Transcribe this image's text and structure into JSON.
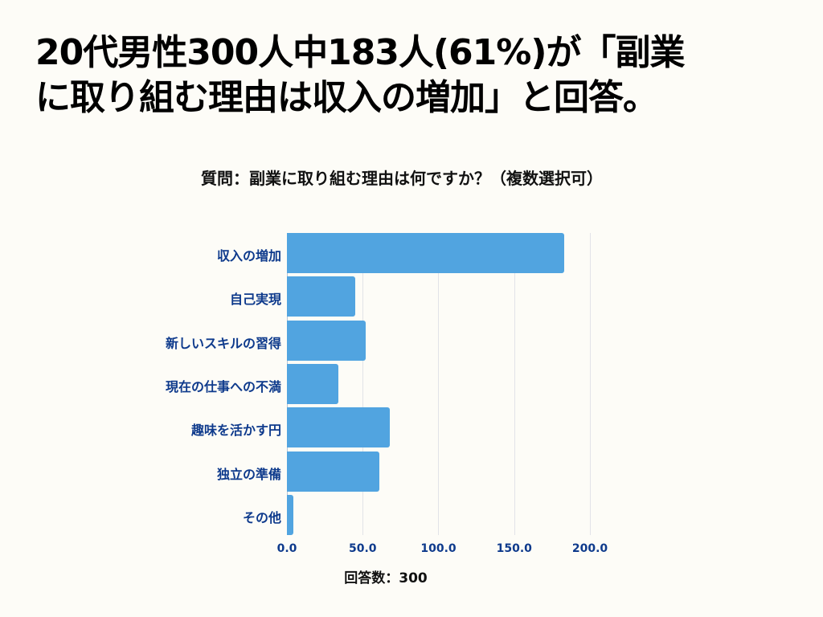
{
  "headline": {
    "line1": "20代男性300人中183人(61%)が「副業",
    "line2": "に取り組む理由は収入の増加」と回答。"
  },
  "chart_title": "質問：副業に取り組む理由は何ですか？（複数選択可）",
  "x_axis_label": "回答数：300",
  "colors": {
    "bar": "#51a4e0",
    "label": "#0e3a8c",
    "background": "#fdfcf7",
    "grid": "#e2e3e8"
  },
  "categories": [
    {
      "label": "収入の増加",
      "value": 183
    },
    {
      "label": "自己実現",
      "value": 45
    },
    {
      "label": "新しいスキルの習得",
      "value": 52
    },
    {
      "label": "現在の仕事への不満",
      "value": 34
    },
    {
      "label": "趣味を活かす円",
      "value": 68
    },
    {
      "label": "独立の準備",
      "value": 61
    },
    {
      "label": "その他",
      "value": 4
    }
  ],
  "x_ticks": [
    "0.0",
    "50.0",
    "100.0",
    "150.0",
    "200.0"
  ],
  "chart_data": {
    "type": "bar",
    "orientation": "horizontal",
    "title": "質問：副業に取り組む理由は何ですか？（複数選択可）",
    "headline": "20代男性300人中183人(61%)が「副業に取り組む理由は収入の増加」と回答。",
    "categories": [
      "収入の増加",
      "自己実現",
      "新しいスキルの習得",
      "現在の仕事への不満",
      "趣味を活かす円",
      "独立の準備",
      "その他"
    ],
    "values": [
      183,
      45,
      52,
      34,
      68,
      61,
      4
    ],
    "xlabel": "回答数：300",
    "ylabel": "",
    "xlim": [
      0,
      200
    ],
    "x_ticks": [
      0,
      50,
      100,
      150,
      200
    ],
    "grid": true,
    "legend": null
  }
}
